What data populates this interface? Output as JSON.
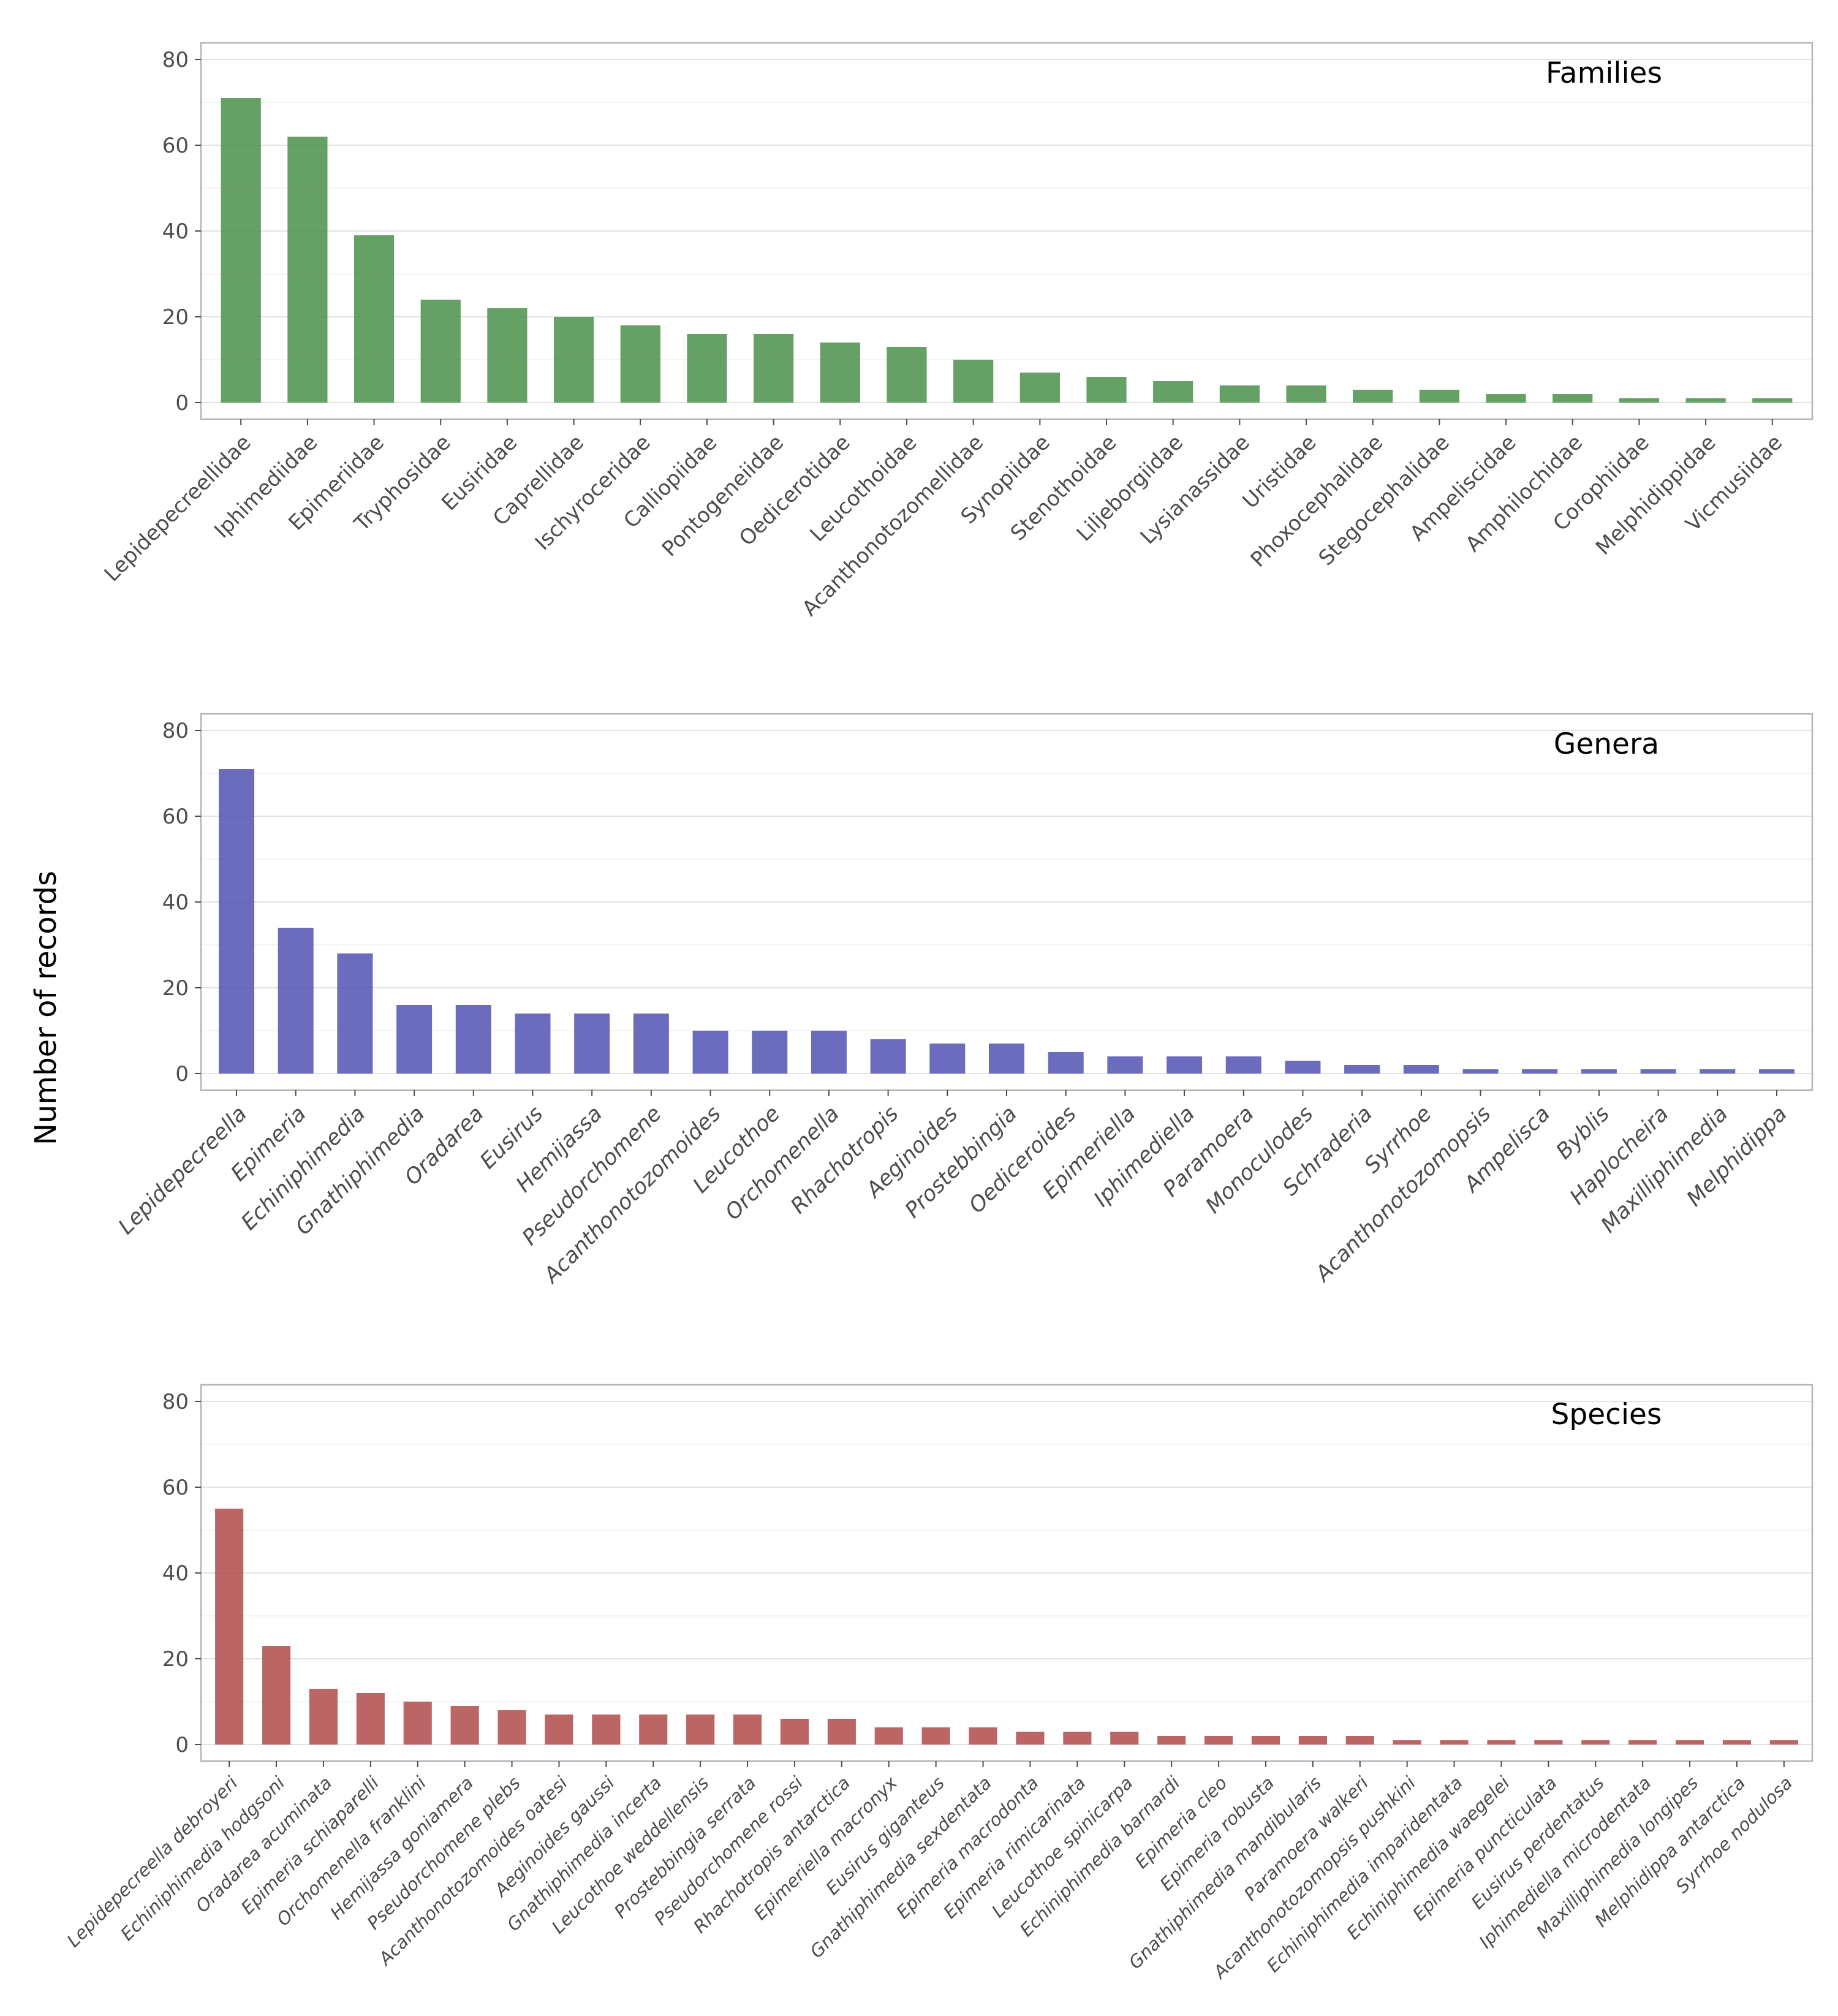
{
  "ylabel": "Number of records",
  "chart_data": [
    {
      "type": "bar",
      "title": "Families",
      "ylabel": "Number of records",
      "ylim": [
        0,
        83
      ],
      "yticks": [
        0,
        20,
        40,
        60,
        80
      ],
      "grid": true,
      "color": "#4a8f4a",
      "italic_labels": false,
      "categories": [
        "Lepidepecreellidae",
        "Iphimediidae",
        "Epimeriidae",
        "Tryphosidae",
        "Eusiridae",
        "Caprellidae",
        "Ischyroceridae",
        "Calliopiidae",
        "Pontogeneiidae",
        "Oedicerotidae",
        "Leucothoidae",
        "Acanthonotozomellidae",
        "Synopiidae",
        "Stenothoidae",
        "Liljeborgiidae",
        "Lysianassidae",
        "Uristidae",
        "Phoxocephalidae",
        "Stegocephalidae",
        "Ampeliscidae",
        "Amphilochidae",
        "Corophiidae",
        "Melphidippidae",
        "Vicmusiidae"
      ],
      "values": [
        71,
        62,
        39,
        24,
        22,
        20,
        18,
        16,
        16,
        14,
        13,
        10,
        7,
        6,
        5,
        4,
        4,
        3,
        3,
        2,
        2,
        1,
        1,
        1
      ]
    },
    {
      "type": "bar",
      "title": "Genera",
      "ylabel": "Number of records",
      "ylim": [
        0,
        83
      ],
      "yticks": [
        0,
        20,
        40,
        60,
        80
      ],
      "grid": true,
      "color": "#5252b4",
      "italic_labels": true,
      "categories": [
        "Lepidepecreella",
        "Epimeria",
        "Echiniphimedia",
        "Gnathiphimedia",
        "Oradarea",
        "Eusirus",
        "Hemijassa",
        "Pseudorchomene",
        "Acanthonotozomoides",
        "Leucothoe",
        "Orchomenella",
        "Rhachotropis",
        "Aeginoides",
        "Prostebbingia",
        "Oediceroides",
        "Epimeriella",
        "Iphimediella",
        "Paramoera",
        "Monoculodes",
        "Schraderia",
        "Syrrhoe",
        "Acanthonotozomopsis",
        "Ampelisca",
        "Byblis",
        "Haplocheira",
        "Maxilliphimedia",
        "Melphidippa"
      ],
      "values": [
        71,
        34,
        28,
        16,
        16,
        14,
        14,
        14,
        10,
        10,
        10,
        8,
        7,
        7,
        5,
        4,
        4,
        4,
        3,
        2,
        2,
        1,
        1,
        1,
        1,
        1,
        1
      ]
    },
    {
      "type": "bar",
      "title": "Species",
      "ylabel": "Number of records",
      "ylim": [
        0,
        83
      ],
      "yticks": [
        0,
        20,
        40,
        60,
        80
      ],
      "grid": true,
      "color": "#b04a4a",
      "italic_labels": true,
      "categories": [
        "Lepidepecreella debroyeri",
        "Echiniphimedia hodgsoni",
        "Oradarea acuminata",
        "Epimeria schiaparelli",
        "Orchomenella franklini",
        "Hemijassa goniamera",
        "Pseudorchomene plebs",
        "Acanthonotozomoides oatesi",
        "Aeginoides gaussi",
        "Gnathiphimedia incerta",
        "Leucothoe weddellensis",
        "Prostebbingia serrata",
        "Pseudorchomene rossi",
        "Rhachotropis antarctica",
        "Epimeriella macronyx",
        "Eusirus giganteus",
        "Gnathiphimedia sexdentata",
        "Epimeria macrodonta",
        "Epimeria rimicarinata",
        "Leucothoe spinicarpa",
        "Echiniphimedia barnardi",
        "Epimeria cleo",
        "Epimeria robusta",
        "Gnathiphimedia mandibularis",
        "Paramoera walkeri",
        "Acanthonotozomopsis pushkini",
        "Echiniphimedia imparidentata",
        "Echiniphimedia waegelei",
        "Epimeria puncticulata",
        "Eusirus perdentatus",
        "Iphimediella microdentata",
        "Maxilliphimedia longipes",
        "Melphidippa antarctica",
        "Syrrhoe nodulosa"
      ],
      "values": [
        55,
        23,
        13,
        12,
        10,
        9,
        8,
        7,
        7,
        7,
        7,
        7,
        6,
        6,
        4,
        4,
        4,
        3,
        3,
        3,
        2,
        2,
        2,
        2,
        2,
        1,
        1,
        1,
        1,
        1,
        1,
        1,
        1,
        1
      ]
    }
  ]
}
